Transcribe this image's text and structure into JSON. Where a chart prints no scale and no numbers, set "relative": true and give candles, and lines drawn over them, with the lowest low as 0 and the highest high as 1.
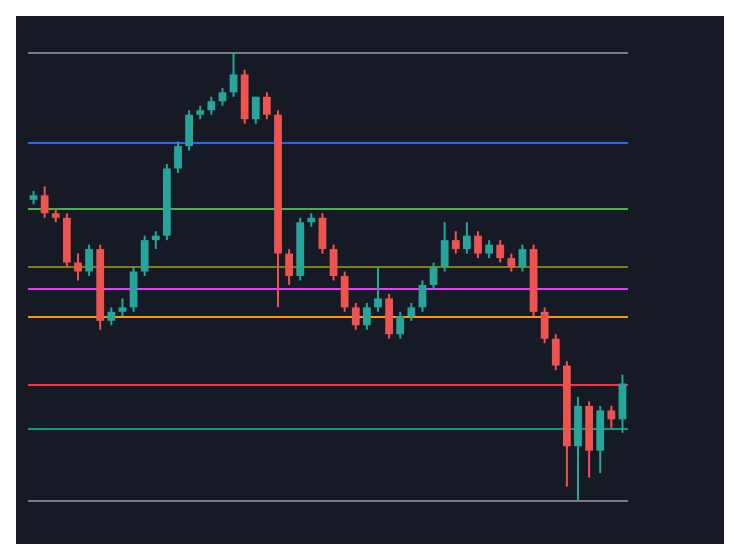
{
  "chart_data": {
    "type": "candlestick",
    "relative": true,
    "categories": [
      null,
      null,
      null,
      null,
      null,
      null,
      null,
      null,
      null,
      null,
      null,
      null,
      null,
      null,
      null,
      null,
      null,
      null,
      null,
      null,
      null,
      null,
      null,
      null,
      null,
      null,
      null,
      null,
      null,
      null,
      null,
      null,
      null,
      null,
      null,
      null,
      null,
      null,
      null,
      null,
      null,
      null,
      null,
      null,
      null,
      null,
      null,
      null,
      null,
      null,
      null,
      null,
      null,
      null
    ],
    "ohlc": [
      [
        0.67,
        0.69,
        0.66,
        0.68
      ],
      [
        0.68,
        0.7,
        0.63,
        0.64
      ],
      [
        0.64,
        0.65,
        0.62,
        0.63
      ],
      [
        0.63,
        0.64,
        0.52,
        0.53
      ],
      [
        0.53,
        0.55,
        0.49,
        0.51
      ],
      [
        0.51,
        0.57,
        0.5,
        0.56
      ],
      [
        0.56,
        0.57,
        0.38,
        0.4
      ],
      [
        0.4,
        0.43,
        0.39,
        0.42
      ],
      [
        0.42,
        0.45,
        0.41,
        0.43
      ],
      [
        0.43,
        0.52,
        0.42,
        0.51
      ],
      [
        0.51,
        0.59,
        0.5,
        0.58
      ],
      [
        0.58,
        0.6,
        0.56,
        0.59
      ],
      [
        0.59,
        0.75,
        0.58,
        0.74
      ],
      [
        0.74,
        0.8,
        0.73,
        0.79
      ],
      [
        0.79,
        0.87,
        0.78,
        0.86
      ],
      [
        0.86,
        0.88,
        0.85,
        0.87
      ],
      [
        0.87,
        0.9,
        0.86,
        0.89
      ],
      [
        0.89,
        0.92,
        0.88,
        0.91
      ],
      [
        0.91,
        1.0,
        0.9,
        0.95
      ],
      [
        0.95,
        0.96,
        0.84,
        0.85
      ],
      [
        0.85,
        0.9,
        0.84,
        0.9
      ],
      [
        0.9,
        0.91,
        0.85,
        0.86
      ],
      [
        0.86,
        0.87,
        0.43,
        0.55
      ],
      [
        0.55,
        0.56,
        0.48,
        0.5
      ],
      [
        0.5,
        0.63,
        0.49,
        0.62
      ],
      [
        0.62,
        0.64,
        0.61,
        0.63
      ],
      [
        0.63,
        0.64,
        0.55,
        0.56
      ],
      [
        0.56,
        0.57,
        0.49,
        0.5
      ],
      [
        0.5,
        0.51,
        0.42,
        0.43
      ],
      [
        0.43,
        0.44,
        0.38,
        0.39
      ],
      [
        0.39,
        0.44,
        0.38,
        0.43
      ],
      [
        0.43,
        0.52,
        0.42,
        0.45
      ],
      [
        0.45,
        0.46,
        0.36,
        0.37
      ],
      [
        0.37,
        0.42,
        0.36,
        0.41
      ],
      [
        0.41,
        0.44,
        0.4,
        0.43
      ],
      [
        0.43,
        0.49,
        0.42,
        0.48
      ],
      [
        0.48,
        0.53,
        0.47,
        0.52
      ],
      [
        0.52,
        0.62,
        0.51,
        0.58
      ],
      [
        0.58,
        0.6,
        0.55,
        0.56
      ],
      [
        0.56,
        0.62,
        0.55,
        0.59
      ],
      [
        0.59,
        0.6,
        0.54,
        0.55
      ],
      [
        0.55,
        0.58,
        0.54,
        0.57
      ],
      [
        0.57,
        0.58,
        0.53,
        0.54
      ],
      [
        0.54,
        0.55,
        0.51,
        0.52
      ],
      [
        0.52,
        0.57,
        0.51,
        0.56
      ],
      [
        0.56,
        0.57,
        0.41,
        0.42
      ],
      [
        0.42,
        0.43,
        0.35,
        0.36
      ],
      [
        0.36,
        0.37,
        0.29,
        0.3
      ],
      [
        0.3,
        0.31,
        0.03,
        0.12
      ],
      [
        0.12,
        0.23,
        0.0,
        0.21
      ],
      [
        0.21,
        0.22,
        0.05,
        0.11
      ],
      [
        0.11,
        0.21,
        0.06,
        0.2
      ],
      [
        0.2,
        0.21,
        0.16,
        0.18
      ],
      [
        0.18,
        0.28,
        0.15,
        0.26
      ]
    ],
    "ref_lines": [
      {
        "axis": "y",
        "value": 1.0,
        "color": "#787b86"
      },
      {
        "axis": "y",
        "value": 0.8,
        "color": "#2962ff"
      },
      {
        "axis": "y",
        "value": 0.65,
        "color": "#4caf50"
      },
      {
        "axis": "y",
        "value": 0.52,
        "color": "#808000"
      },
      {
        "axis": "y",
        "value": 0.47,
        "color": "#e040fb"
      },
      {
        "axis": "y",
        "value": 0.41,
        "color": "#ff9800"
      },
      {
        "axis": "y",
        "value": 0.26,
        "color": "#f23645"
      },
      {
        "axis": "y",
        "value": 0.16,
        "color": "#089981"
      },
      {
        "axis": "y",
        "value": 0.0,
        "color": "#787b86"
      }
    ]
  }
}
